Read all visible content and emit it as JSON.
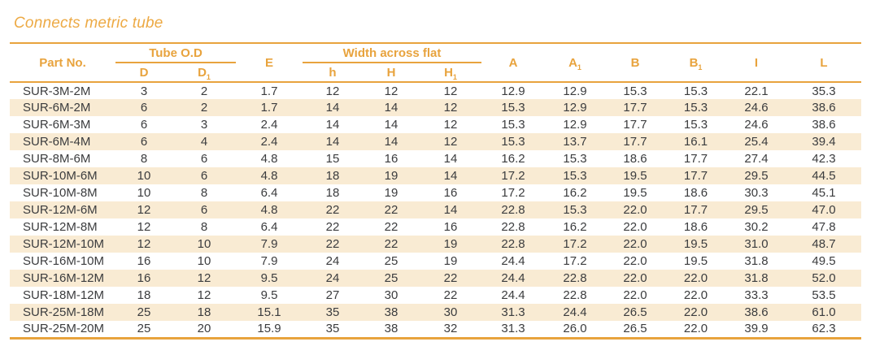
{
  "page": {
    "title": "Connects metric tube"
  },
  "colors": {
    "accent": "#E8A33D",
    "stripe": "#F9EBD3",
    "text": "#3B3C3E",
    "title": "#EDAA45"
  },
  "table": {
    "header": {
      "part_no": "Part No.",
      "tube_od_group": "Tube O.D",
      "width_across_flat_group": "Width across flat",
      "e": "E",
      "sub_columns": [
        {
          "base": "D",
          "sub": ""
        },
        {
          "base": "D",
          "sub": "1"
        },
        {
          "base": "h",
          "sub": ""
        },
        {
          "base": "H",
          "sub": ""
        },
        {
          "base": "H",
          "sub": "1"
        }
      ],
      "right_columns": [
        {
          "base": "A",
          "sub": ""
        },
        {
          "base": "A",
          "sub": "1"
        },
        {
          "base": "B",
          "sub": ""
        },
        {
          "base": "B",
          "sub": "1"
        },
        {
          "base": "I",
          "sub": ""
        },
        {
          "base": "L",
          "sub": ""
        }
      ]
    },
    "rows": [
      {
        "part": "SUR-3M-2M",
        "values": [
          "3",
          "2",
          "1.7",
          "12",
          "12",
          "12",
          "12.9",
          "12.9",
          "15.3",
          "15.3",
          "22.1",
          "35.3"
        ]
      },
      {
        "part": "SUR-6M-2M",
        "values": [
          "6",
          "2",
          "1.7",
          "14",
          "14",
          "12",
          "15.3",
          "12.9",
          "17.7",
          "15.3",
          "24.6",
          "38.6"
        ]
      },
      {
        "part": "SUR-6M-3M",
        "values": [
          "6",
          "3",
          "2.4",
          "14",
          "14",
          "12",
          "15.3",
          "12.9",
          "17.7",
          "15.3",
          "24.6",
          "38.6"
        ]
      },
      {
        "part": "SUR-6M-4M",
        "values": [
          "6",
          "4",
          "2.4",
          "14",
          "14",
          "12",
          "15.3",
          "13.7",
          "17.7",
          "16.1",
          "25.4",
          "39.4"
        ]
      },
      {
        "part": "SUR-8M-6M",
        "values": [
          "8",
          "6",
          "4.8",
          "15",
          "16",
          "14",
          "16.2",
          "15.3",
          "18.6",
          "17.7",
          "27.4",
          "42.3"
        ]
      },
      {
        "part": "SUR-10M-6M",
        "values": [
          "10",
          "6",
          "4.8",
          "18",
          "19",
          "14",
          "17.2",
          "15.3",
          "19.5",
          "17.7",
          "29.5",
          "44.5"
        ]
      },
      {
        "part": "SUR-10M-8M",
        "values": [
          "10",
          "8",
          "6.4",
          "18",
          "19",
          "16",
          "17.2",
          "16.2",
          "19.5",
          "18.6",
          "30.3",
          "45.1"
        ]
      },
      {
        "part": "SUR-12M-6M",
        "values": [
          "12",
          "6",
          "4.8",
          "22",
          "22",
          "14",
          "22.8",
          "15.3",
          "22.0",
          "17.7",
          "29.5",
          "47.0"
        ]
      },
      {
        "part": "SUR-12M-8M",
        "values": [
          "12",
          "8",
          "6.4",
          "22",
          "22",
          "16",
          "22.8",
          "16.2",
          "22.0",
          "18.6",
          "30.2",
          "47.8"
        ]
      },
      {
        "part": "SUR-12M-10M",
        "values": [
          "12",
          "10",
          "7.9",
          "22",
          "22",
          "19",
          "22.8",
          "17.2",
          "22.0",
          "19.5",
          "31.0",
          "48.7"
        ]
      },
      {
        "part": "SUR-16M-10M",
        "values": [
          "16",
          "10",
          "7.9",
          "24",
          "25",
          "19",
          "24.4",
          "17.2",
          "22.0",
          "19.5",
          "31.8",
          "49.5"
        ]
      },
      {
        "part": "SUR-16M-12M",
        "values": [
          "16",
          "12",
          "9.5",
          "24",
          "25",
          "22",
          "24.4",
          "22.8",
          "22.0",
          "22.0",
          "31.8",
          "52.0"
        ]
      },
      {
        "part": "SUR-18M-12M",
        "values": [
          "18",
          "12",
          "9.5",
          "27",
          "30",
          "22",
          "24.4",
          "22.8",
          "22.0",
          "22.0",
          "33.3",
          "53.5"
        ]
      },
      {
        "part": "SUR-25M-18M",
        "values": [
          "25",
          "18",
          "15.1",
          "35",
          "38",
          "30",
          "31.3",
          "24.4",
          "26.5",
          "22.0",
          "38.6",
          "61.0"
        ]
      },
      {
        "part": "SUR-25M-20M",
        "values": [
          "25",
          "20",
          "15.9",
          "35",
          "38",
          "32",
          "31.3",
          "26.0",
          "26.5",
          "22.0",
          "39.9",
          "62.3"
        ]
      }
    ]
  }
}
